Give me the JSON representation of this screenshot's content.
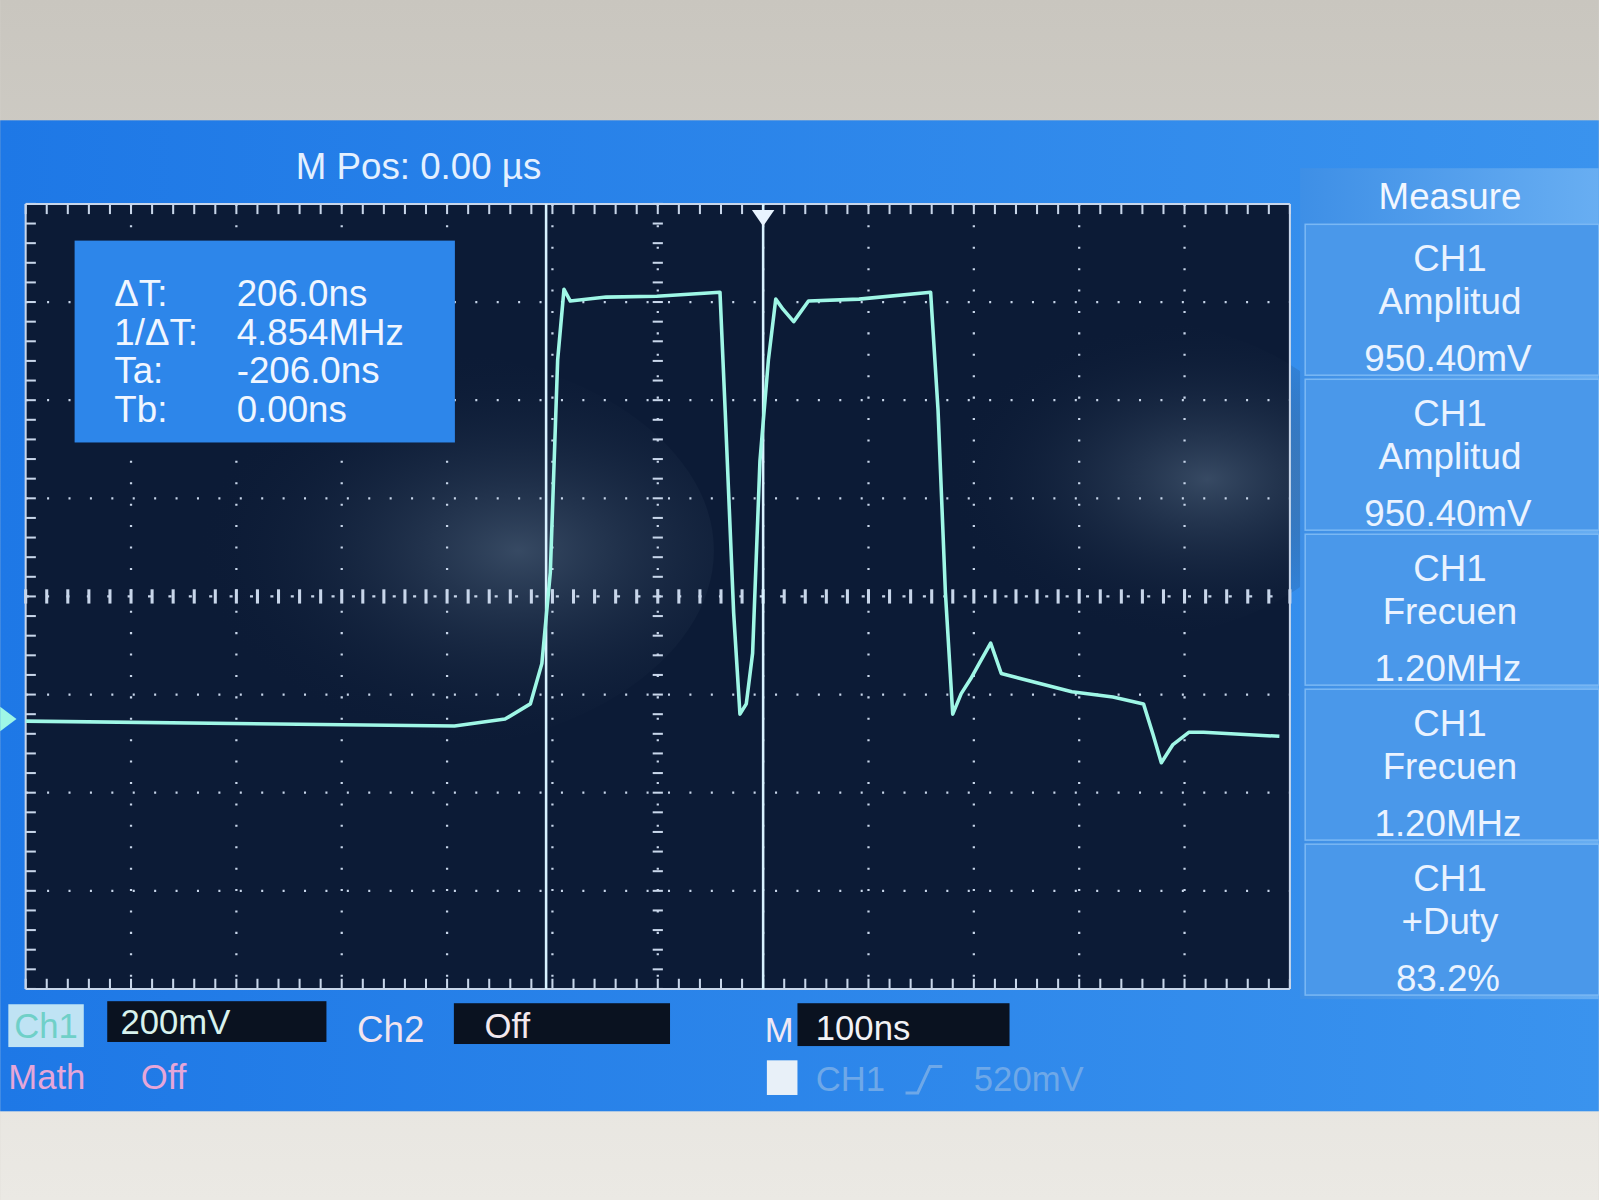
{
  "chart_data": {
    "type": "line",
    "x": [
      -707,
      -293,
      -245,
      -221,
      -210,
      -202,
      -195,
      -189,
      -183,
      -149,
      -101,
      -41,
      -36,
      -28,
      -22,
      -16,
      -10,
      -3,
      5,
      12,
      19,
      29,
      43,
      91,
      159,
      166,
      173,
      180,
      188,
      197,
      205,
      216,
      226,
      245,
      293,
      332,
      361,
      370,
      378,
      389,
      404,
      418,
      490
    ],
    "values": [
      -4,
      -14,
      0,
      31,
      113,
      299,
      732,
      876,
      852,
      860,
      862,
      870,
      629,
      217,
      10,
      31,
      134,
      526,
      732,
      856,
      835,
      810,
      852,
      856,
      870,
      629,
      258,
      10,
      52,
      82,
      113,
      155,
      93,
      82,
      56,
      45,
      31,
      -31,
      -89,
      -52,
      -27,
      -27,
      -35
    ],
    "color": "#9ff7e6",
    "xlim": [
      -700,
      500
    ],
    "xticks": [
      -700,
      -600,
      -500,
      -400,
      -300,
      -200,
      -100,
      0,
      100,
      200,
      300,
      400,
      500
    ],
    "ylim": [
      -550,
      1050
    ],
    "yticks": [
      -550,
      -350,
      -150,
      50,
      250,
      450,
      650,
      850,
      1050
    ],
    "grid": true,
    "tick_labels": false,
    "cursors": [
      -206,
      0
    ],
    "trigger_time": 0,
    "ground": 0,
    "header": "M Pos: 0.00 µs",
    "cursor_readout": [
      {
        "label": "ΔT:",
        "value": "206.0ns"
      },
      {
        "label": "1/ΔT:",
        "value": "4.854MHz"
      },
      {
        "label": "Ta:",
        "value": "-206.0ns"
      },
      {
        "label": "Tb:",
        "value": "0.00ns"
      }
    ],
    "measure": {
      "title": "Measure",
      "items": [
        {
          "source": "CH1",
          "name": "Amplitud",
          "value": "950.40mV"
        },
        {
          "source": "CH1",
          "name": "Amplitud",
          "value": "950.40mV"
        },
        {
          "source": "CH1",
          "name": "Frecuen",
          "value": "1.20MHz"
        },
        {
          "source": "CH1",
          "name": "Frecuen",
          "value": "1.20MHz"
        },
        {
          "source": "CH1",
          "name": "+Duty",
          "value": "83.2%"
        }
      ]
    },
    "status_bar": {
      "ch1": "Ch1",
      "ch1_scale": "200mV",
      "ch2": "Ch2",
      "ch2_state": "Off",
      "timebase_label": "M",
      "timebase": "100ns",
      "math": "Math",
      "math_state": "Off",
      "trigger_source": "CH1",
      "trigger_level": "520mV"
    }
  }
}
